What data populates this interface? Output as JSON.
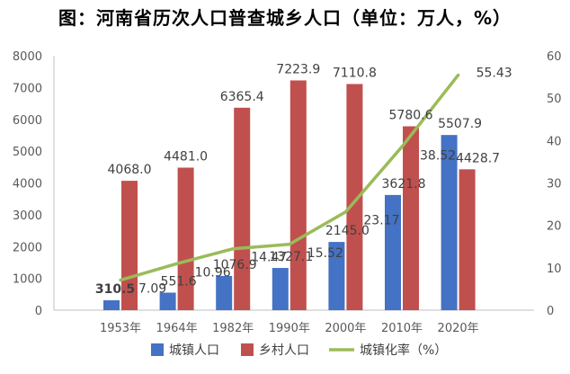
{
  "chart_data": {
    "type": "bar+line",
    "title": "图：河南省历次人口普查城乡人口（单位：万人，%）",
    "categories": [
      "1953年",
      "1964年",
      "1982年",
      "1990年",
      "2000年",
      "2010年",
      "2020年"
    ],
    "series": [
      {
        "name": "城镇人口",
        "type": "bar",
        "axis": "left",
        "color": "#4472C4",
        "values": [
          310.5,
          551.6,
          1076.9,
          1327.1,
          2145.0,
          3621.8,
          5507.9
        ],
        "labels": [
          "310.5",
          "551.6",
          "1076.9",
          "1327.1",
          "2145.0",
          "3621.8",
          "5507.9"
        ]
      },
      {
        "name": "乡村人口",
        "type": "bar",
        "axis": "left",
        "color": "#C0504D",
        "values": [
          4068.0,
          4481.0,
          6365.4,
          7223.9,
          7110.8,
          5780.6,
          4428.7
        ],
        "labels": [
          "4068.0",
          "4481.0",
          "6365.4",
          "7223.9",
          "7110.8",
          "5780.6",
          "4428.7"
        ]
      },
      {
        "name": "城镇化率（%）",
        "type": "line",
        "axis": "right",
        "color": "#9BBB59",
        "values": [
          7.09,
          10.96,
          14.47,
          15.52,
          23.17,
          38.52,
          55.43
        ],
        "labels": [
          "7.09",
          "10.96",
          "14.47",
          "15.52",
          "23.17",
          "38.52",
          "55.43"
        ]
      }
    ],
    "y_left": {
      "ylim": [
        0,
        8000
      ],
      "ticks": [
        "0",
        "1000",
        "2000",
        "3000",
        "4000",
        "5000",
        "6000",
        "7000",
        "8000"
      ]
    },
    "y_right": {
      "ylim": [
        0,
        60
      ],
      "ticks": [
        "0",
        "10",
        "20",
        "30",
        "40",
        "50",
        "60"
      ]
    },
    "grid": false,
    "legend_position": "bottom"
  }
}
